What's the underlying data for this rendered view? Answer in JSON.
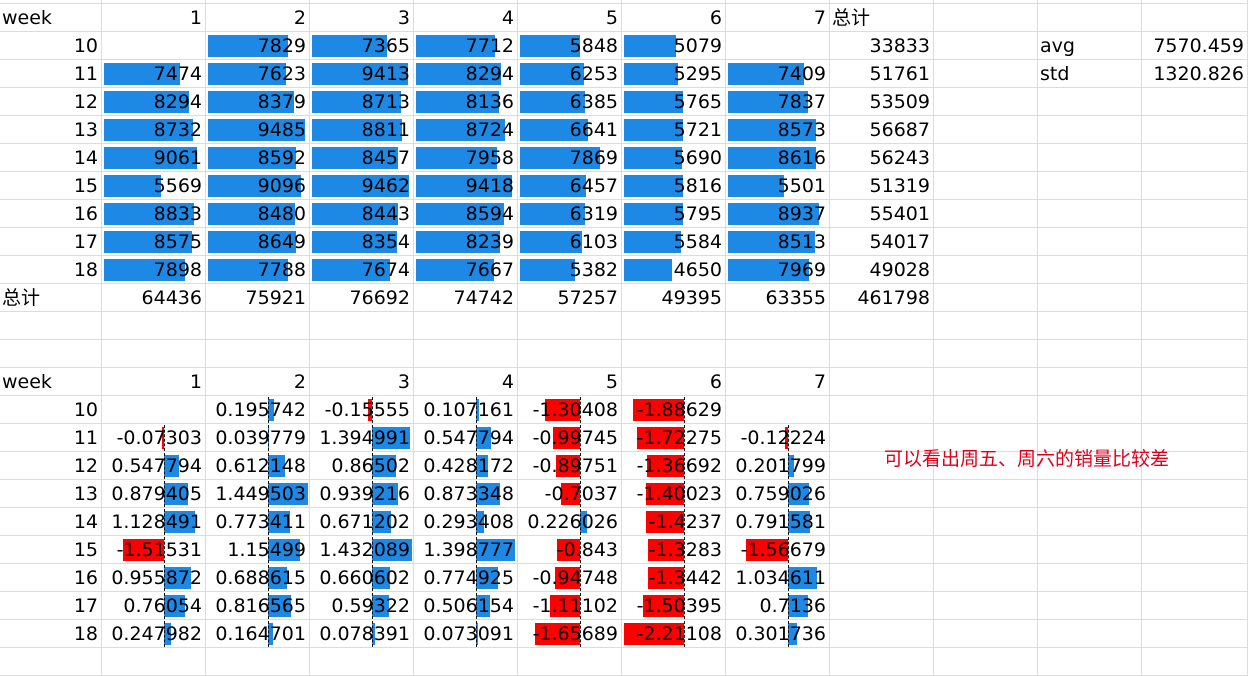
{
  "colors": {
    "positive_bar": "#1e88e5",
    "negative_bar": "#ff0000",
    "grid": "#dcdcdc",
    "note": "#e0001a"
  },
  "top_table": {
    "header_label": "week",
    "columns": [
      "1",
      "2",
      "3",
      "4",
      "5",
      "6",
      "7"
    ],
    "total_col_label": "总计",
    "rows": [
      {
        "week": "10",
        "values": [
          "",
          "7829",
          "7365",
          "7712",
          "5848",
          "5079",
          ""
        ],
        "total": "33833"
      },
      {
        "week": "11",
        "values": [
          "7474",
          "7623",
          "9413",
          "8294",
          "6253",
          "5295",
          "7409"
        ],
        "total": "51761"
      },
      {
        "week": "12",
        "values": [
          "8294",
          "8379",
          "8713",
          "8136",
          "6385",
          "5765",
          "7837"
        ],
        "total": "53509"
      },
      {
        "week": "13",
        "values": [
          "8732",
          "9485",
          "8811",
          "8724",
          "6641",
          "5721",
          "8573"
        ],
        "total": "56687"
      },
      {
        "week": "14",
        "values": [
          "9061",
          "8592",
          "8457",
          "7958",
          "7869",
          "5690",
          "8616"
        ],
        "total": "56243"
      },
      {
        "week": "15",
        "values": [
          "5569",
          "9096",
          "9462",
          "9418",
          "6457",
          "5816",
          "5501"
        ],
        "total": "51319"
      },
      {
        "week": "16",
        "values": [
          "8833",
          "8480",
          "8443",
          "8594",
          "6319",
          "5795",
          "8937"
        ],
        "total": "55401"
      },
      {
        "week": "17",
        "values": [
          "8575",
          "8649",
          "8354",
          "8239",
          "6103",
          "5584",
          "8513"
        ],
        "total": "54017"
      },
      {
        "week": "18",
        "values": [
          "7898",
          "7788",
          "7674",
          "7667",
          "5382",
          "4650",
          "7969"
        ],
        "total": "49028"
      }
    ],
    "total_row": {
      "label": "总计",
      "values": [
        "64436",
        "75921",
        "76692",
        "74742",
        "57257",
        "49395",
        "63355"
      ],
      "grand_total": "461798"
    }
  },
  "stats": [
    {
      "label": "avg",
      "value": "7570.459"
    },
    {
      "label": "std",
      "value": "1320.826"
    }
  ],
  "bottom_table": {
    "header_label": "week",
    "columns": [
      "1",
      "2",
      "3",
      "4",
      "5",
      "6",
      "7"
    ],
    "rows": [
      {
        "week": "10",
        "values": [
          "",
          "0.195742",
          "-0.15555",
          "0.107161",
          "-1.30408",
          "-1.88629",
          ""
        ]
      },
      {
        "week": "11",
        "values": [
          "-0.07303",
          "0.039779",
          "1.394991",
          "0.547794",
          "-0.99745",
          "-1.72275",
          "-0.12224"
        ]
      },
      {
        "week": "12",
        "values": [
          "0.547794",
          "0.612148",
          "0.86502",
          "0.428172",
          "-0.89751",
          "-1.36692",
          "0.201799"
        ]
      },
      {
        "week": "13",
        "values": [
          "0.879405",
          "1.449503",
          "0.939216",
          "0.873348",
          "-0.7037",
          "-1.40023",
          "0.759026"
        ]
      },
      {
        "week": "14",
        "values": [
          "1.128491",
          "0.773411",
          "0.671202",
          "0.293408",
          "0.226026",
          "-1.4237",
          "0.791581"
        ]
      },
      {
        "week": "15",
        "values": [
          "-1.51531",
          "1.15499",
          "1.432089",
          "1.398777",
          "-0.843",
          "-1.3283",
          "-1.56679"
        ]
      },
      {
        "week": "16",
        "values": [
          "0.955872",
          "0.688615",
          "0.660602",
          "0.774925",
          "-0.94748",
          "-1.3442",
          "1.034611"
        ]
      },
      {
        "week": "17",
        "values": [
          "0.76054",
          "0.816565",
          "0.59322",
          "0.506154",
          "-1.11102",
          "-1.50395",
          "0.7136"
        ]
      },
      {
        "week": "18",
        "values": [
          "0.247982",
          "0.164701",
          "0.078391",
          "0.073091",
          "-1.65689",
          "-2.21108",
          "0.301736"
        ]
      }
    ]
  },
  "note": "可以看出周五、周六的销量比较差"
}
